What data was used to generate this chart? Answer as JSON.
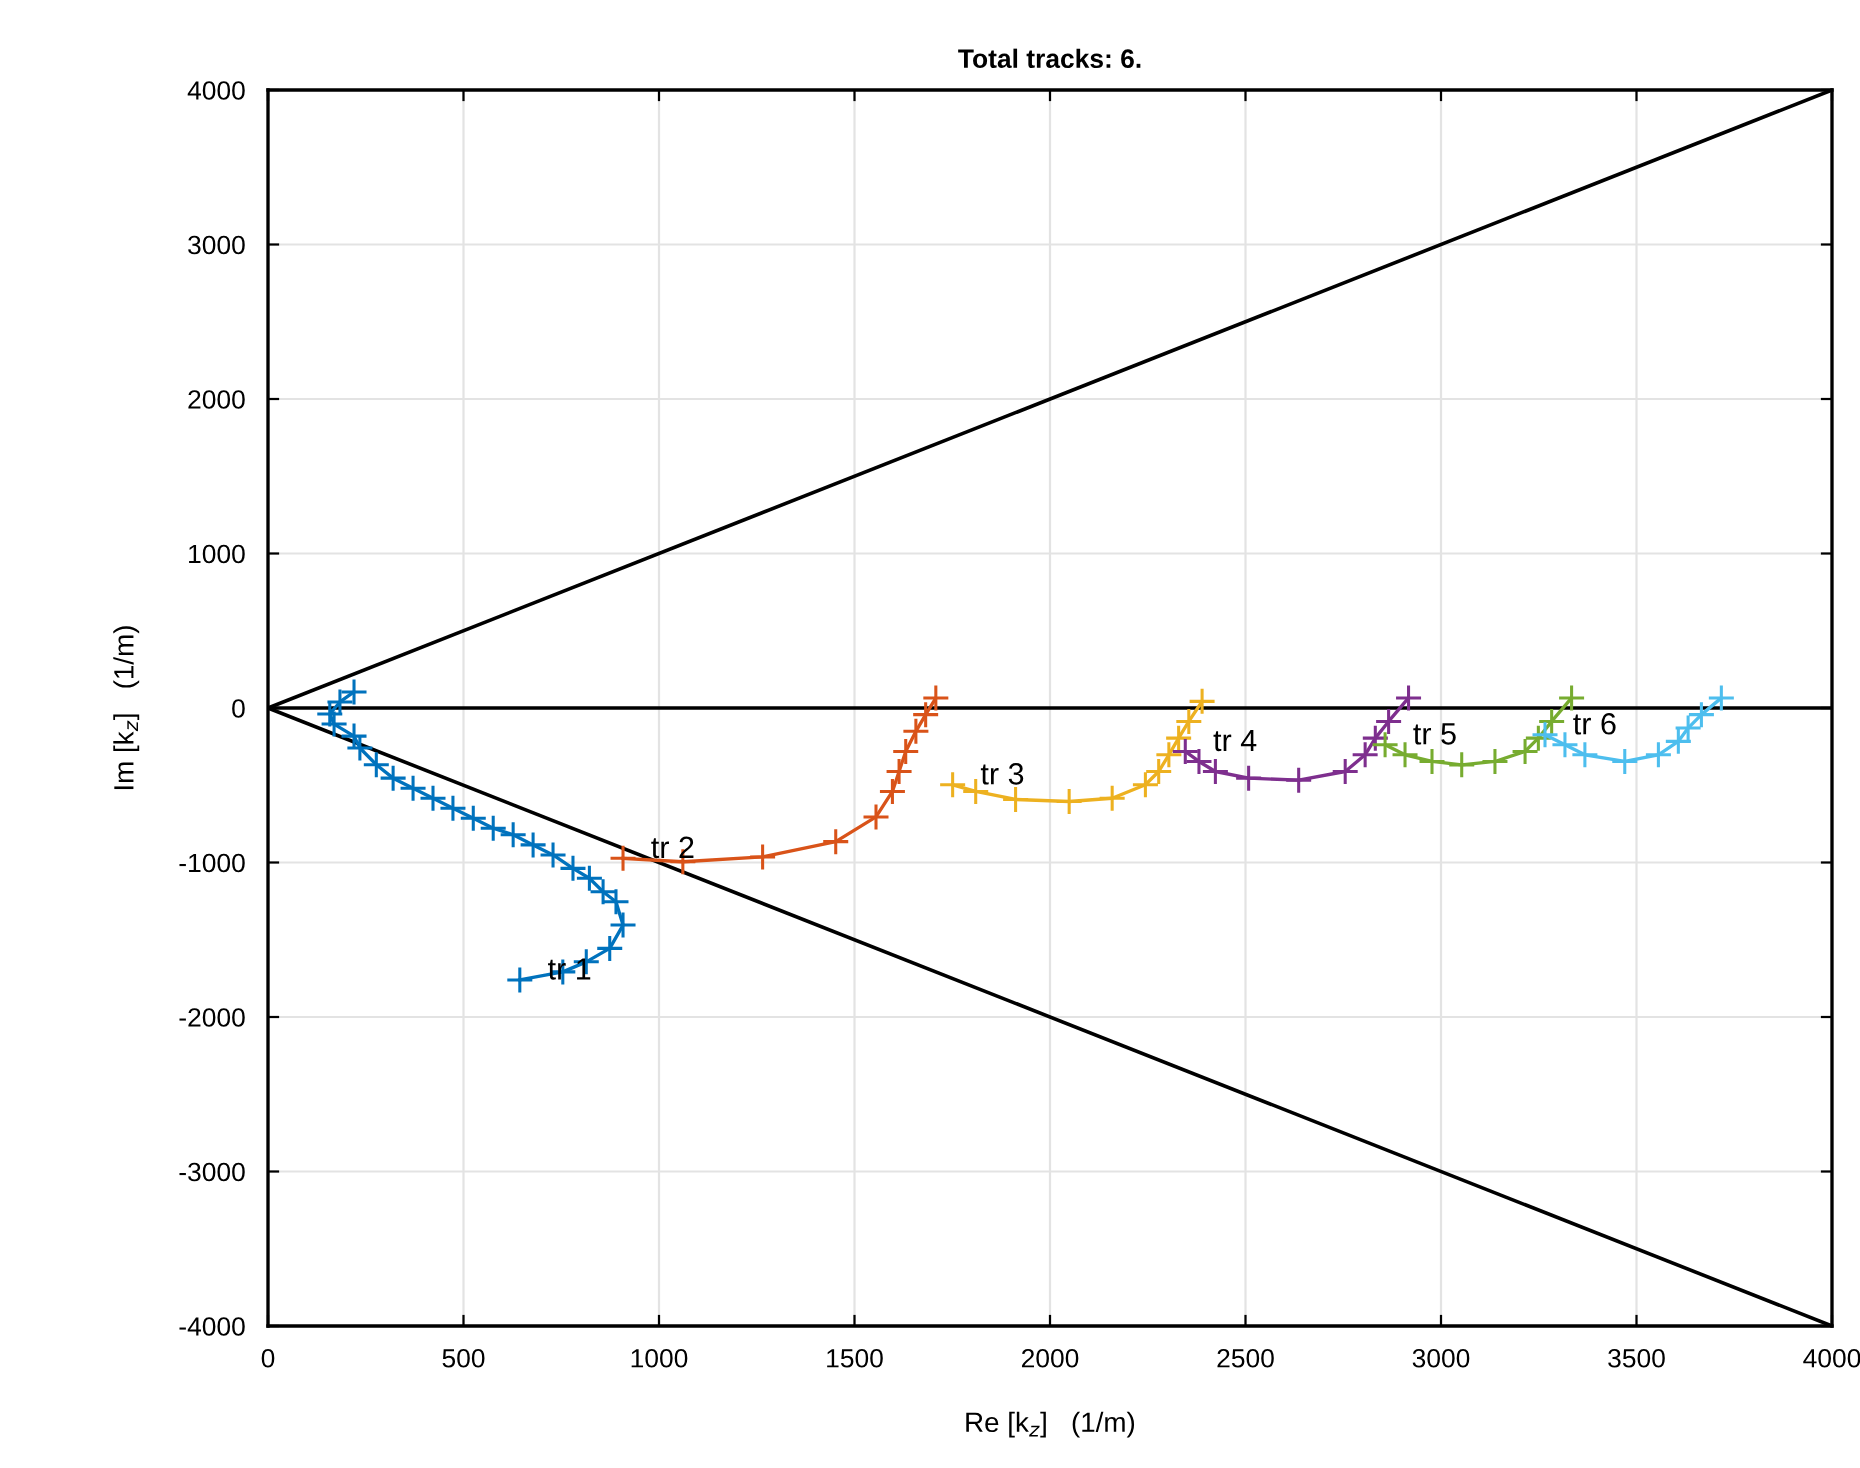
{
  "chart_data": {
    "type": "line",
    "title": "Total tracks: 6.",
    "xlabel": "Re [k$_{z}$]   (1/m)",
    "ylabel": "Im [k$_{z}$]   (1/m)",
    "xlim": [
      0,
      4000
    ],
    "ylim": [
      -4000,
      4000
    ],
    "xticks": [
      0,
      500,
      1000,
      1500,
      2000,
      2500,
      3000,
      3500,
      4000
    ],
    "yticks": [
      -4000,
      -3000,
      -2000,
      -1000,
      0,
      1000,
      2000,
      3000,
      4000
    ],
    "grid": true,
    "marker": "cross",
    "ref_lines": [
      {
        "axis": "y",
        "value": 0,
        "color": "#000000"
      }
    ],
    "series": [
      {
        "color": "#000000",
        "marker": "none",
        "x": [
          0,
          4000
        ],
        "values": [
          0,
          4000
        ]
      },
      {
        "color": "#000000",
        "marker": "none",
        "x": [
          0,
          4000
        ],
        "values": [
          0,
          -4000
        ]
      },
      {
        "name": "tr 1",
        "color": "#0072bd",
        "x": [
          644,
          754,
          814,
          874,
          908,
          890,
          857,
          822,
          780,
          729,
          678,
          627,
          576,
          525,
          473,
          422,
          371,
          320,
          277,
          235,
          220,
          169,
          158,
          184,
          220
        ],
        "values": [
          -1760,
          -1708,
          -1643,
          -1556,
          -1405,
          -1254,
          -1189,
          -1102,
          -1038,
          -951,
          -886,
          -821,
          -778,
          -713,
          -649,
          -584,
          -519,
          -454,
          -367,
          -259,
          -182,
          -104,
          -39,
          39,
          104
        ]
      },
      {
        "name": "tr 2",
        "color": "#d95319",
        "x": [
          908,
          1061,
          1265,
          1452,
          1555,
          1597,
          1614,
          1631,
          1657,
          1682,
          1708
        ],
        "values": [
          -973,
          -995,
          -964,
          -865,
          -705,
          -540,
          -411,
          -281,
          -151,
          -43,
          65
        ]
      },
      {
        "name": "tr 3",
        "color": "#edb120",
        "x": [
          1751,
          1810,
          1912,
          2049,
          2159,
          2244,
          2278,
          2304,
          2329,
          2355,
          2389
        ],
        "values": [
          -497,
          -540,
          -592,
          -605,
          -584,
          -497,
          -411,
          -303,
          -195,
          -87,
          43
        ]
      },
      {
        "name": "tr 4",
        "color": "#7e2f8e",
        "x": [
          2346,
          2381,
          2423,
          2508,
          2636,
          2755,
          2806,
          2832,
          2866,
          2917
        ],
        "values": [
          -281,
          -346,
          -411,
          -454,
          -467,
          -411,
          -303,
          -195,
          -87,
          65
        ]
      },
      {
        "name": "tr 5",
        "color": "#77ac30",
        "x": [
          2857,
          2908,
          2977,
          3053,
          3138,
          3215,
          3249,
          3283,
          3334
        ],
        "values": [
          -238,
          -303,
          -346,
          -368,
          -346,
          -281,
          -195,
          -87,
          65
        ]
      },
      {
        "name": "tr 6",
        "color": "#4dbeee",
        "x": [
          3266,
          3317,
          3368,
          3470,
          3556,
          3607,
          3632,
          3666,
          3717
        ],
        "values": [
          -173,
          -238,
          -303,
          -346,
          -303,
          -216,
          -130,
          -43,
          65
        ]
      }
    ]
  }
}
